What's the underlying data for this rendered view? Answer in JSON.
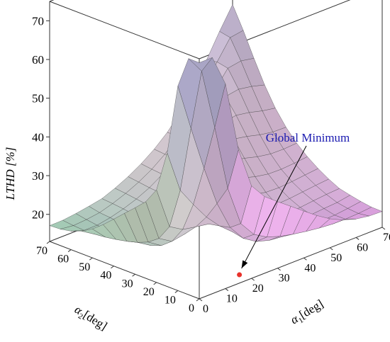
{
  "chart_data": {
    "type": "surface",
    "title": "",
    "zlabel": "LTHD [%]",
    "xlabel": {
      "symbol": "α",
      "sub": "1",
      "unit": "[deg]"
    },
    "ylabel": {
      "symbol": "α",
      "sub": "2",
      "unit": "[deg]"
    },
    "x_ticks": [
      "0",
      "10",
      "20",
      "30",
      "40",
      "50",
      "60",
      "70"
    ],
    "y_ticks": [
      "0",
      "10",
      "20",
      "30",
      "40",
      "50",
      "60",
      "70"
    ],
    "z_ticks": [
      "20",
      "30",
      "40",
      "50",
      "60",
      "70"
    ],
    "xlim": [
      0,
      70
    ],
    "ylim": [
      0,
      70
    ],
    "zlim": [
      13,
      75
    ],
    "grid_step": 5,
    "surface_description": "LTHD surface over alpha1-alpha2, symmetric about alpha1 = alpha2; sharp peak near (0,0) above 70%, valley floor about 14-17% along the axes near 15-25 deg",
    "annotation": {
      "text": "Global Minimum",
      "alpha1": 17,
      "alpha2": 2,
      "lthd": 14.3
    },
    "colors": {
      "annotation_text": "#1a1ab0",
      "marker": "#e8322b",
      "box": "#333333"
    }
  }
}
